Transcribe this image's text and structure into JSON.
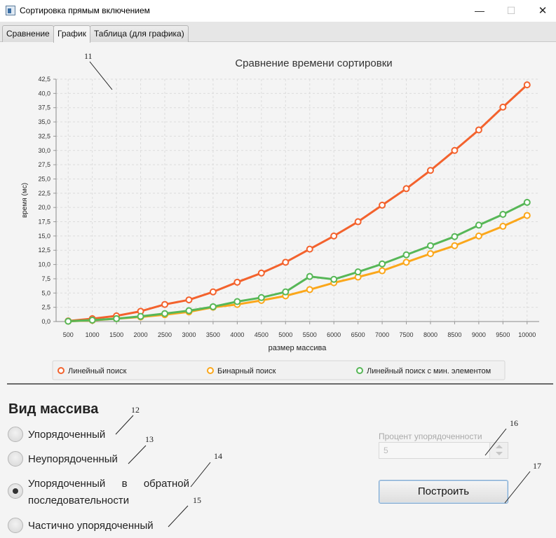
{
  "window": {
    "title": "Сортировка прямым включением",
    "minimize": "—",
    "maximize": "☐",
    "close": "✕"
  },
  "tabs": [
    {
      "label": "Сравнение"
    },
    {
      "label": "График"
    },
    {
      "label": "Таблица (для графика)"
    }
  ],
  "chart_data": {
    "type": "line",
    "title": "Сравнение времени сортировки",
    "xlabel": "размер массива",
    "ylabel": "время (мс)",
    "categories": [
      "500",
      "1000",
      "1500",
      "2000",
      "2500",
      "3000",
      "3500",
      "4000",
      "4500",
      "5000",
      "5500",
      "6000",
      "6500",
      "7000",
      "7500",
      "8000",
      "8500",
      "9000",
      "9500",
      "10000"
    ],
    "ylim": [
      0,
      42.5
    ],
    "yticks": [
      "0,0",
      "2,5",
      "5,0",
      "7,5",
      "10,0",
      "12,5",
      "15,0",
      "17,5",
      "20,0",
      "22,5",
      "25,0",
      "27,5",
      "30,0",
      "32,5",
      "35,0",
      "37,5",
      "40,0",
      "42,5"
    ],
    "grid": true,
    "legend_position": "bottom",
    "series": [
      {
        "name": "Линейный поиск",
        "color": "#f3622d",
        "values": [
          0.1,
          0.5,
          1.0,
          1.8,
          3.0,
          3.8,
          5.2,
          6.9,
          8.5,
          10.4,
          12.7,
          15.0,
          17.5,
          20.4,
          23.3,
          26.5,
          30.0,
          33.6,
          37.6,
          41.5
        ]
      },
      {
        "name": "Бинарный поиск",
        "color": "#fba71b",
        "values": [
          0.05,
          0.2,
          0.5,
          0.8,
          1.2,
          1.7,
          2.5,
          3.0,
          3.7,
          4.5,
          5.6,
          6.8,
          7.8,
          8.9,
          10.4,
          11.9,
          13.3,
          15.0,
          16.7,
          18.6
        ]
      },
      {
        "name": "Линейный поиск с мин. элементом",
        "color": "#57b757",
        "values": [
          0.05,
          0.25,
          0.5,
          0.9,
          1.4,
          1.9,
          2.6,
          3.5,
          4.2,
          5.2,
          7.9,
          7.4,
          8.7,
          10.1,
          11.7,
          13.3,
          14.9,
          16.9,
          18.8,
          20.9
        ]
      }
    ]
  },
  "annotations": [
    "11",
    "12",
    "13",
    "14",
    "15",
    "16",
    "17"
  ],
  "array_type": {
    "title": "Вид массива",
    "options": [
      {
        "label": "Упорядоченный",
        "selected": false
      },
      {
        "label": "Неупорядоченный",
        "selected": false
      },
      {
        "label_line1": "Упорядоченный в обратной",
        "label_line2": "последовательности",
        "selected": true
      },
      {
        "label": "Частично упорядоченный",
        "selected": false
      }
    ]
  },
  "percent": {
    "label": "Процент упорядоченности",
    "value": "5"
  },
  "build_button": {
    "label": "Построить"
  }
}
